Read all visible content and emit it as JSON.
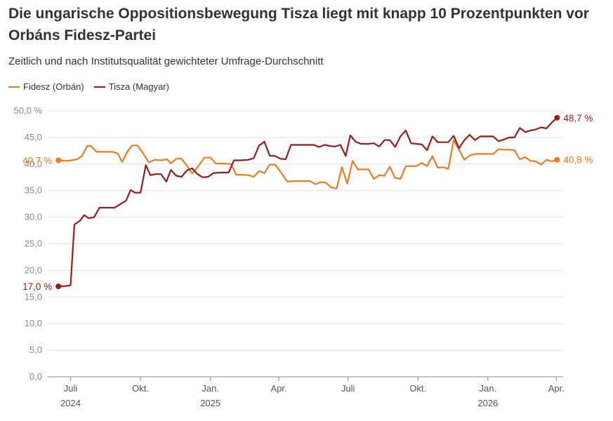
{
  "title": "Die ungarische Oppositionsbewegung Tisza liegt mit knapp 10 Prozentpunkten vor Orbáns Fidesz-Partei",
  "subtitle": "Zeitlich und nach Institutsqualität gewichteter Umfrage-Durchschnitt",
  "colors": {
    "fidesz": "#f07b1f",
    "tisza": "#9e1a1a",
    "grid": "#e2e2e2",
    "axis": "#888888"
  },
  "chart_data": {
    "type": "line",
    "title": "Die ungarische Oppositionsbewegung Tisza liegt mit knapp 10 Prozentpunkten vor Orbáns Fidesz-Partei",
    "subtitle": "Zeitlich und nach Institutsqualität gewichteter Umfrage-Durchschnitt",
    "xlabel": "",
    "ylabel": "",
    "ylim": [
      0,
      50
    ],
    "yticks": [
      "0,0",
      "5,0",
      "10,0",
      "15,0",
      "20,0",
      "25,0",
      "30,0",
      "35,0",
      "40,0",
      "45,0",
      "50,0 %"
    ],
    "yticks_values": [
      0,
      5,
      10,
      15,
      20,
      25,
      30,
      35,
      40,
      45,
      50
    ],
    "xlim": [
      "2024-06-01",
      "2026-04-10"
    ],
    "xticks": [
      {
        "date": "2024-07-01",
        "label": "Juli",
        "year": "2024"
      },
      {
        "date": "2024-10-01",
        "label": "Okt.",
        "year": ""
      },
      {
        "date": "2025-01-01",
        "label": "Jan.",
        "year": "2025"
      },
      {
        "date": "2025-04-01",
        "label": "Apr.",
        "year": ""
      },
      {
        "date": "2025-07-01",
        "label": "Juli",
        "year": ""
      },
      {
        "date": "2025-10-01",
        "label": "Okt.",
        "year": ""
      },
      {
        "date": "2026-01-01",
        "label": "Jan.",
        "year": "2026"
      },
      {
        "date": "2026-04-01",
        "label": "Apr.",
        "year": ""
      }
    ],
    "grid": true,
    "legend": "top-left",
    "series": [
      {
        "name": "Fidesz (Orbán)",
        "color": "#f07b1f",
        "start_label": "40,7 %",
        "end_label": "40,8 %",
        "points": [
          [
            "2024-06-15",
            40.7
          ],
          [
            "2024-06-25",
            40.6
          ],
          [
            "2024-07-02",
            40.7
          ],
          [
            "2024-07-10",
            40.9
          ],
          [
            "2024-07-16",
            41.5
          ],
          [
            "2024-07-23",
            43.4
          ],
          [
            "2024-07-28",
            43.4
          ],
          [
            "2024-08-04",
            42.3
          ],
          [
            "2024-08-15",
            42.3
          ],
          [
            "2024-08-25",
            42.3
          ],
          [
            "2024-09-01",
            42.0
          ],
          [
            "2024-09-07",
            40.4
          ],
          [
            "2024-09-14",
            42.4
          ],
          [
            "2024-09-20",
            43.5
          ],
          [
            "2024-09-27",
            43.5
          ],
          [
            "2024-10-05",
            41.9
          ],
          [
            "2024-10-12",
            40.3
          ],
          [
            "2024-10-20",
            40.8
          ],
          [
            "2024-10-28",
            40.7
          ],
          [
            "2024-11-05",
            40.9
          ],
          [
            "2024-11-10",
            40.1
          ],
          [
            "2024-11-17",
            41.0
          ],
          [
            "2024-11-24",
            41.0
          ],
          [
            "2024-12-01",
            39.7
          ],
          [
            "2024-12-08",
            38.2
          ],
          [
            "2024-12-16",
            39.6
          ],
          [
            "2024-12-24",
            41.2
          ],
          [
            "2025-01-01",
            41.2
          ],
          [
            "2025-01-08",
            40.1
          ],
          [
            "2025-01-18",
            40.1
          ],
          [
            "2025-01-28",
            40.0
          ],
          [
            "2025-02-04",
            38.0
          ],
          [
            "2025-02-12",
            38.0
          ],
          [
            "2025-02-20",
            37.9
          ],
          [
            "2025-02-27",
            37.6
          ],
          [
            "2025-03-06",
            38.7
          ],
          [
            "2025-03-13",
            38.3
          ],
          [
            "2025-03-20",
            39.9
          ],
          [
            "2025-03-27",
            39.9
          ],
          [
            "2025-04-05",
            38.2
          ],
          [
            "2025-04-12",
            36.7
          ],
          [
            "2025-04-22",
            36.8
          ],
          [
            "2025-05-02",
            36.8
          ],
          [
            "2025-05-12",
            36.8
          ],
          [
            "2025-05-19",
            36.2
          ],
          [
            "2025-05-26",
            36.6
          ],
          [
            "2025-06-02",
            36.5
          ],
          [
            "2025-06-09",
            35.6
          ],
          [
            "2025-06-16",
            35.4
          ],
          [
            "2025-06-23",
            39.4
          ],
          [
            "2025-06-30",
            36.3
          ],
          [
            "2025-07-07",
            40.6
          ],
          [
            "2025-07-14",
            39.0
          ],
          [
            "2025-07-21",
            39.0
          ],
          [
            "2025-07-28",
            39.0
          ],
          [
            "2025-08-04",
            37.2
          ],
          [
            "2025-08-11",
            37.9
          ],
          [
            "2025-08-18",
            37.8
          ],
          [
            "2025-08-25",
            39.5
          ],
          [
            "2025-09-01",
            37.4
          ],
          [
            "2025-09-08",
            37.2
          ],
          [
            "2025-09-15",
            39.6
          ],
          [
            "2025-09-22",
            39.6
          ],
          [
            "2025-09-29",
            39.6
          ],
          [
            "2025-10-06",
            40.2
          ],
          [
            "2025-10-13",
            39.6
          ],
          [
            "2025-10-20",
            41.5
          ],
          [
            "2025-10-27",
            39.3
          ],
          [
            "2025-11-03",
            39.4
          ],
          [
            "2025-11-10",
            39.1
          ],
          [
            "2025-11-17",
            44.5
          ],
          [
            "2025-11-24",
            42.7
          ],
          [
            "2025-12-01",
            40.8
          ],
          [
            "2025-12-08",
            41.6
          ],
          [
            "2025-12-16",
            41.9
          ],
          [
            "2025-12-24",
            41.9
          ],
          [
            "2026-01-01",
            41.9
          ],
          [
            "2026-01-08",
            41.9
          ],
          [
            "2026-01-15",
            42.8
          ],
          [
            "2026-01-22",
            42.7
          ],
          [
            "2026-01-29",
            42.7
          ],
          [
            "2026-02-05",
            42.6
          ],
          [
            "2026-02-12",
            40.9
          ],
          [
            "2026-02-19",
            41.3
          ],
          [
            "2026-02-26",
            40.6
          ],
          [
            "2026-03-05",
            40.5
          ],
          [
            "2026-03-12",
            39.9
          ],
          [
            "2026-03-19",
            40.8
          ],
          [
            "2026-03-26",
            40.5
          ],
          [
            "2026-04-02",
            40.8
          ]
        ]
      },
      {
        "name": "Tisza (Magyar)",
        "color": "#9e1a1a",
        "start_label": "17,0 %",
        "end_label": "48,7 %",
        "points": [
          [
            "2024-06-15",
            17.0
          ],
          [
            "2024-06-20",
            17.0
          ],
          [
            "2024-06-26",
            17.1
          ],
          [
            "2024-07-01",
            17.2
          ],
          [
            "2024-07-06",
            28.6
          ],
          [
            "2024-07-13",
            29.3
          ],
          [
            "2024-07-19",
            30.4
          ],
          [
            "2024-07-25",
            29.8
          ],
          [
            "2024-08-01",
            30.0
          ],
          [
            "2024-08-08",
            31.8
          ],
          [
            "2024-08-18",
            31.8
          ],
          [
            "2024-08-28",
            31.8
          ],
          [
            "2024-09-05",
            32.5
          ],
          [
            "2024-09-12",
            33.1
          ],
          [
            "2024-09-18",
            35.1
          ],
          [
            "2024-09-24",
            34.6
          ],
          [
            "2024-10-01",
            34.6
          ],
          [
            "2024-10-08",
            39.8
          ],
          [
            "2024-10-14",
            37.9
          ],
          [
            "2024-10-21",
            38.1
          ],
          [
            "2024-10-28",
            38.1
          ],
          [
            "2024-11-04",
            36.7
          ],
          [
            "2024-11-10",
            38.9
          ],
          [
            "2024-11-17",
            37.8
          ],
          [
            "2024-11-24",
            37.6
          ],
          [
            "2024-12-01",
            38.8
          ],
          [
            "2024-12-08",
            39.2
          ],
          [
            "2024-12-15",
            38.1
          ],
          [
            "2024-12-22",
            37.5
          ],
          [
            "2024-12-29",
            37.6
          ],
          [
            "2025-01-05",
            38.3
          ],
          [
            "2025-01-15",
            38.4
          ],
          [
            "2025-01-25",
            38.4
          ],
          [
            "2025-02-01",
            40.7
          ],
          [
            "2025-02-10",
            40.7
          ],
          [
            "2025-02-20",
            40.8
          ],
          [
            "2025-02-27",
            41.1
          ],
          [
            "2025-03-06",
            43.5
          ],
          [
            "2025-03-13",
            44.2
          ],
          [
            "2025-03-20",
            41.6
          ],
          [
            "2025-03-27",
            41.5
          ],
          [
            "2025-04-03",
            41.0
          ],
          [
            "2025-04-10",
            40.9
          ],
          [
            "2025-04-17",
            43.6
          ],
          [
            "2025-04-27",
            43.6
          ],
          [
            "2025-05-07",
            43.6
          ],
          [
            "2025-05-17",
            43.6
          ],
          [
            "2025-05-24",
            43.2
          ],
          [
            "2025-05-31",
            43.6
          ],
          [
            "2025-06-07",
            43.4
          ],
          [
            "2025-06-14",
            43.3
          ],
          [
            "2025-06-21",
            43.6
          ],
          [
            "2025-06-28",
            41.5
          ],
          [
            "2025-07-04",
            45.4
          ],
          [
            "2025-07-11",
            44.2
          ],
          [
            "2025-07-18",
            43.8
          ],
          [
            "2025-07-28",
            43.8
          ],
          [
            "2025-08-04",
            43.9
          ],
          [
            "2025-08-11",
            43.3
          ],
          [
            "2025-08-18",
            44.5
          ],
          [
            "2025-08-25",
            44.5
          ],
          [
            "2025-09-01",
            43.2
          ],
          [
            "2025-09-08",
            45.2
          ],
          [
            "2025-09-15",
            46.3
          ],
          [
            "2025-09-22",
            43.9
          ],
          [
            "2025-09-29",
            43.8
          ],
          [
            "2025-10-06",
            43.7
          ],
          [
            "2025-10-13",
            42.6
          ],
          [
            "2025-10-20",
            45.2
          ],
          [
            "2025-10-27",
            44.1
          ],
          [
            "2025-11-03",
            44.1
          ],
          [
            "2025-11-10",
            44.1
          ],
          [
            "2025-11-17",
            45.3
          ],
          [
            "2025-11-24",
            43.0
          ],
          [
            "2025-12-01",
            44.5
          ],
          [
            "2025-12-08",
            45.5
          ],
          [
            "2025-12-15",
            44.5
          ],
          [
            "2025-12-22",
            45.2
          ],
          [
            "2025-12-29",
            45.2
          ],
          [
            "2026-01-08",
            45.2
          ],
          [
            "2026-01-15",
            44.3
          ],
          [
            "2026-01-22",
            44.6
          ],
          [
            "2026-01-29",
            45.0
          ],
          [
            "2026-02-05",
            45.0
          ],
          [
            "2026-02-12",
            46.8
          ],
          [
            "2026-02-19",
            46.0
          ],
          [
            "2026-02-26",
            46.3
          ],
          [
            "2026-03-05",
            46.5
          ],
          [
            "2026-03-12",
            46.9
          ],
          [
            "2026-03-19",
            46.7
          ],
          [
            "2026-03-26",
            47.8
          ],
          [
            "2026-04-02",
            48.7
          ]
        ]
      }
    ]
  }
}
